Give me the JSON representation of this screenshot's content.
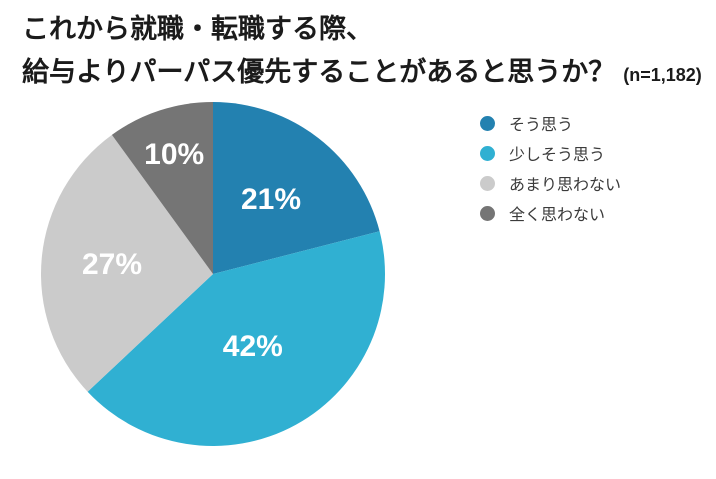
{
  "title": {
    "line1": "これから就職・転職する際、",
    "line2": "給与よりパーパス優先することがあると思うか？",
    "sample_size": "(n=1,182)"
  },
  "chart_data": {
    "type": "pie",
    "categories": [
      "そう思う",
      "少しそう思う",
      "あまり思わない",
      "全く思わない"
    ],
    "values": [
      21,
      42,
      27,
      10
    ],
    "slice_labels": [
      "21%",
      "42%",
      "27%",
      "10%"
    ],
    "colors": [
      "#2381B0",
      "#30B0D2",
      "#CBCBCB",
      "#757575"
    ],
    "start_angle_deg": 0,
    "direction": "clockwise",
    "label_radius_fraction": [
      0.55,
      0.48,
      0.59,
      0.73
    ],
    "legend_position": "right",
    "title": "これから就職・転職する際、給与よりパーパス優先することがあると思うか？",
    "sample_size_note": "(n=1,182)"
  },
  "legend": {
    "items": [
      {
        "label": "そう思う",
        "color": "#2381B0"
      },
      {
        "label": "少しそう思う",
        "color": "#30B0D2"
      },
      {
        "label": "あまり思わない",
        "color": "#CBCBCB"
      },
      {
        "label": "全く思わない",
        "color": "#757575"
      }
    ]
  }
}
